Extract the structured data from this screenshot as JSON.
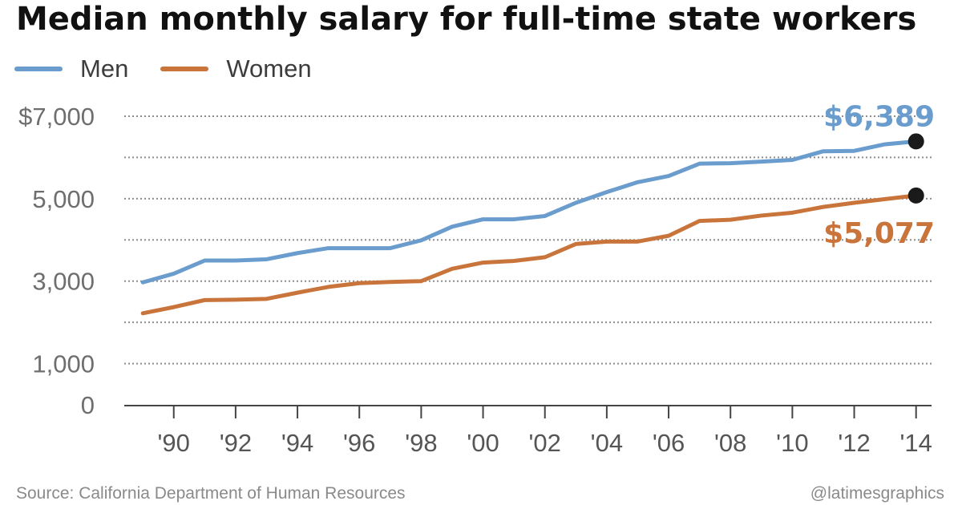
{
  "header": {
    "title": "Median monthly salary for full-time state workers"
  },
  "legend": [
    {
      "label": "Men",
      "color": "#6a9ccd"
    },
    {
      "label": "Women",
      "color": "#c8743b"
    }
  ],
  "footer": {
    "source": "Source: California Department of Human Resources",
    "credit": "@latimesgraphics"
  },
  "chart_data": {
    "type": "line",
    "title": "Median monthly salary for full-time state workers",
    "xlabel": "",
    "ylabel": "",
    "x": [
      1989,
      1990,
      1991,
      1992,
      1993,
      1994,
      1995,
      1996,
      1997,
      1998,
      1999,
      2000,
      2001,
      2002,
      2003,
      2004,
      2005,
      2006,
      2007,
      2008,
      2009,
      2010,
      2011,
      2012,
      2013,
      2014
    ],
    "series": [
      {
        "name": "Men",
        "color": "#6a9ccd",
        "values": [
          2970,
          3180,
          3500,
          3500,
          3530,
          3680,
          3800,
          3800,
          3800,
          3990,
          4320,
          4500,
          4500,
          4580,
          4900,
          5160,
          5400,
          5550,
          5850,
          5860,
          5900,
          5940,
          6150,
          6160,
          6320,
          6389
        ]
      },
      {
        "name": "Women",
        "color": "#c8743b",
        "values": [
          2220,
          2370,
          2540,
          2550,
          2570,
          2720,
          2860,
          2950,
          2980,
          3000,
          3300,
          3450,
          3490,
          3580,
          3900,
          3960,
          3960,
          4100,
          4460,
          4490,
          4590,
          4660,
          4800,
          4900,
          4990,
          5077
        ]
      }
    ],
    "ylim": [
      0,
      7000
    ],
    "y_ticks": [
      {
        "value": 7000,
        "label": "$7,000"
      },
      {
        "value": 5000,
        "label": "5,000"
      },
      {
        "value": 3000,
        "label": "3,000"
      },
      {
        "value": 1000,
        "label": "1,000"
      },
      {
        "value": 0,
        "label": "0"
      }
    ],
    "gridlines": [
      1000,
      2000,
      3000,
      4000,
      5000,
      6000,
      7000
    ],
    "x_ticks": [
      {
        "value": 1990,
        "label": "'90"
      },
      {
        "value": 1992,
        "label": "'92"
      },
      {
        "value": 1994,
        "label": "'94"
      },
      {
        "value": 1996,
        "label": "'96"
      },
      {
        "value": 1998,
        "label": "'98"
      },
      {
        "value": 2000,
        "label": "'00"
      },
      {
        "value": 2002,
        "label": "'02"
      },
      {
        "value": 2004,
        "label": "'04"
      },
      {
        "value": 2006,
        "label": "'06"
      },
      {
        "value": 2008,
        "label": "'08"
      },
      {
        "value": 2010,
        "label": "'10"
      },
      {
        "value": 2012,
        "label": "'12"
      },
      {
        "value": 2014,
        "label": "'14"
      }
    ],
    "annotations": [
      {
        "series": "Men",
        "text": "$6,389",
        "color": "#6a9ccd",
        "position": "above-right"
      },
      {
        "series": "Women",
        "text": "$5,077",
        "color": "#c8743b",
        "position": "below-right"
      }
    ],
    "endpoint_color": "#1a1a1a",
    "legend_position": "top-left"
  }
}
